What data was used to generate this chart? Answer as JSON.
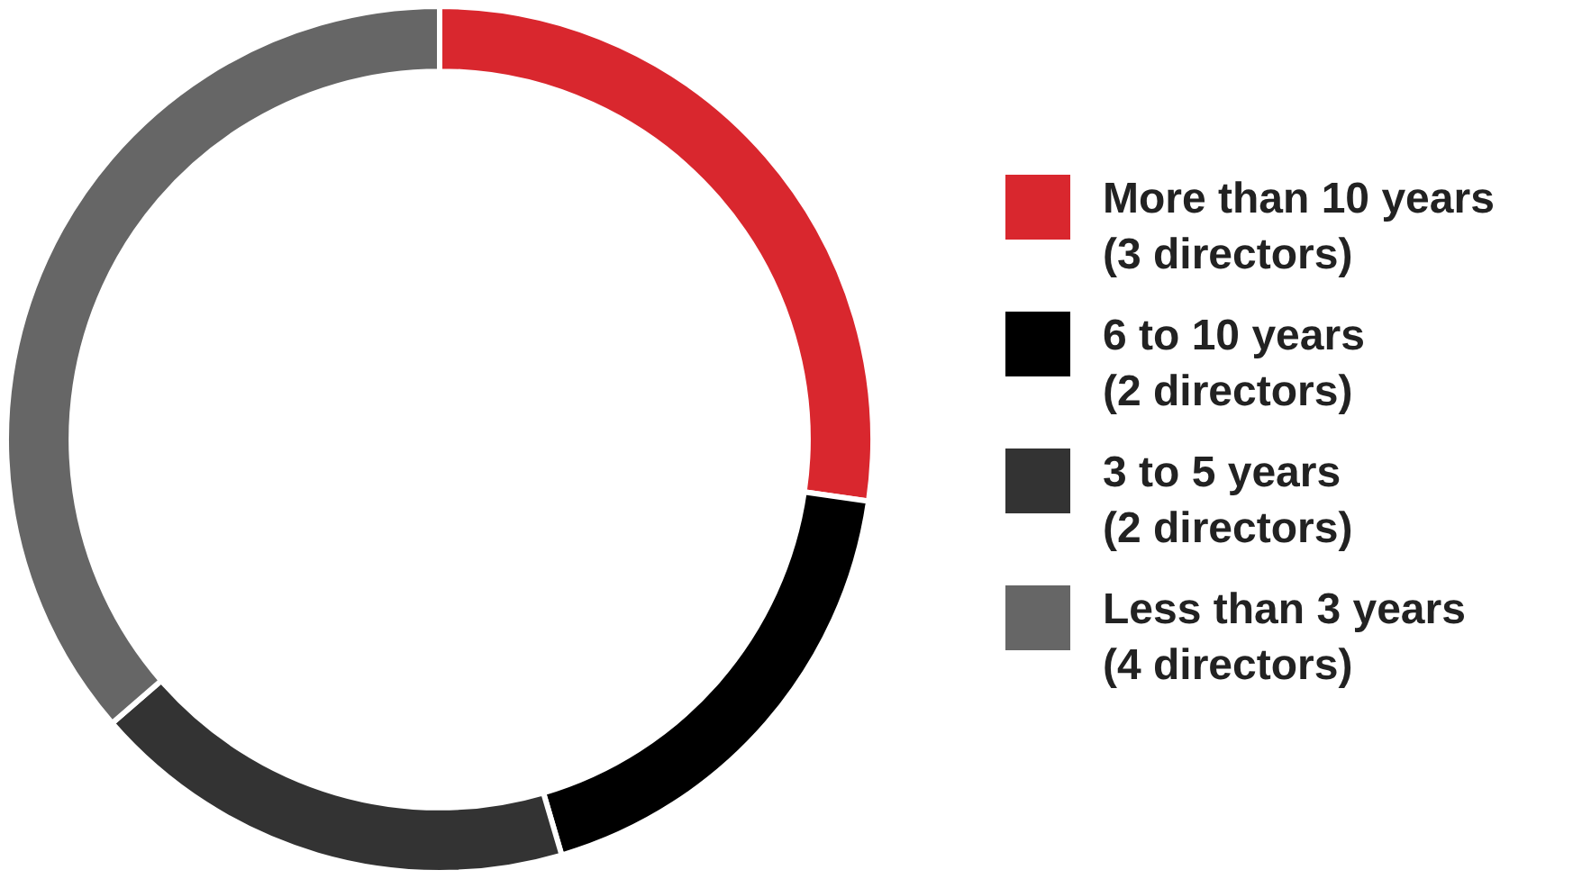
{
  "chart_data": {
    "type": "donut",
    "categories": [
      "More than 10 years\n(3 directors)",
      "6 to 10 years\n(2 directors)",
      "3 to 5 years\n(2 directors)",
      "Less than 3 years\n(4 directors)"
    ],
    "values": [
      3,
      2,
      2,
      4
    ],
    "colors": [
      "#d9272e",
      "#000000",
      "#333333",
      "#666666"
    ],
    "legend": "right"
  }
}
